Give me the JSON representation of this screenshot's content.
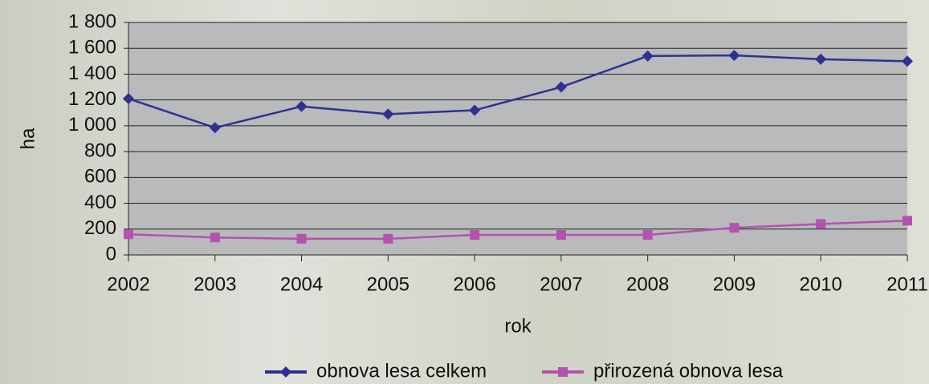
{
  "chart_data": {
    "type": "line",
    "x_label": "rok",
    "y_label": "ha",
    "x": [
      2002,
      2003,
      2004,
      2005,
      2006,
      2007,
      2008,
      2009,
      2010,
      2011
    ],
    "xlim": [
      2002,
      2011
    ],
    "xticks": [
      2002,
      2003,
      2004,
      2005,
      2006,
      2007,
      2008,
      2009,
      2010,
      2011
    ],
    "ylim": [
      0,
      1800
    ],
    "yticks": [
      0,
      200,
      400,
      600,
      800,
      {
        "value": 1000,
        "label": "1 000"
      },
      {
        "value": 1200,
        "label": "1 200"
      },
      {
        "value": 1400,
        "label": "1 400"
      },
      {
        "value": 1600,
        "label": "1 600"
      },
      {
        "value": 1800,
        "label": "1 800"
      }
    ],
    "grid": true,
    "series": [
      {
        "name": "obnova lesa celkem",
        "color": "#2e3192",
        "marker": "diamond",
        "values": [
          1210,
          985,
          1150,
          1090,
          1120,
          1300,
          1540,
          1545,
          1515,
          1500
        ]
      },
      {
        "name": "přirozená obnova lesa",
        "color": "#b452b0",
        "marker": "square",
        "values": [
          160,
          135,
          125,
          125,
          155,
          155,
          155,
          210,
          240,
          265
        ]
      }
    ]
  }
}
